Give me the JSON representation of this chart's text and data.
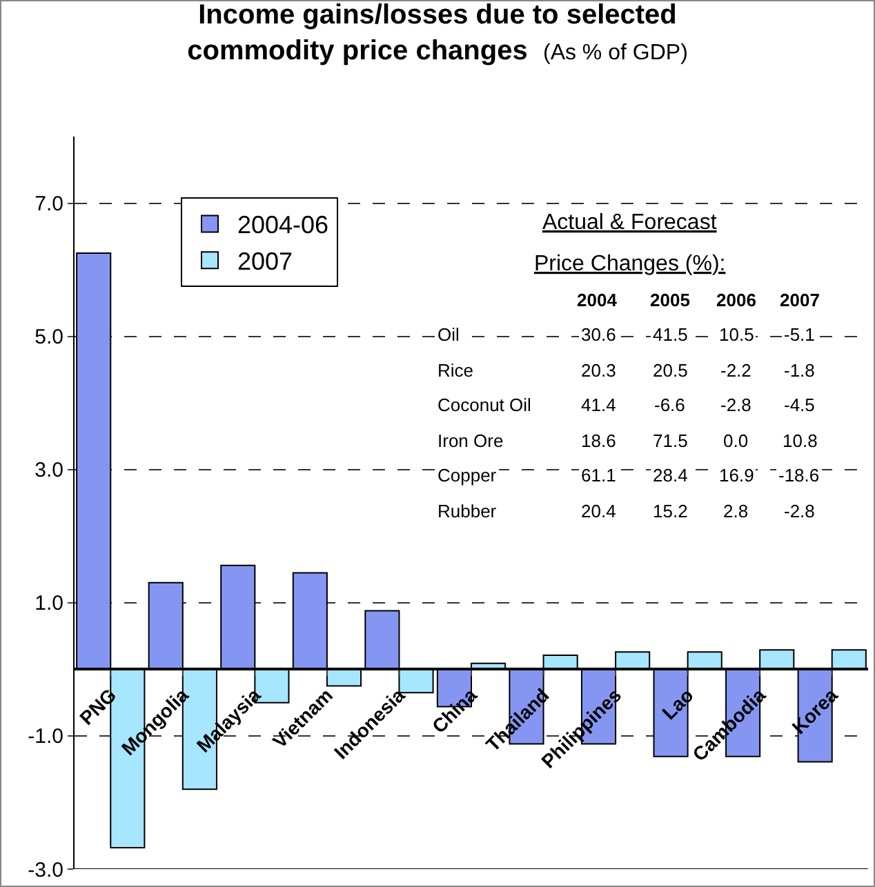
{
  "chart_data": {
    "type": "bar",
    "title": "Income gains/losses due to selected commodity price changes",
    "subtitle": "(As % of GDP)",
    "categories": [
      "PNG",
      "Mongolia",
      "Malaysia",
      "Vietnam",
      "Indonesia",
      "China",
      "Thailand",
      "Philippines",
      "Lao",
      "Cambodia",
      "Korea"
    ],
    "series": [
      {
        "name": "2004-06",
        "color": "#8596f2",
        "values": [
          6.25,
          1.3,
          1.56,
          1.45,
          0.88,
          -0.56,
          -1.12,
          -1.12,
          -1.31,
          -1.31,
          -1.39
        ]
      },
      {
        "name": "2007",
        "color": "#a6e6ff",
        "values": [
          -2.68,
          -1.8,
          -0.5,
          -0.25,
          -0.35,
          0.09,
          0.21,
          0.26,
          0.26,
          0.29,
          0.29
        ]
      }
    ],
    "ylim": [
      -3,
      8
    ],
    "yticks": [
      {
        "value": -3,
        "label": "-3.0"
      },
      {
        "value": -1,
        "label": "-1.0"
      },
      {
        "value": 1,
        "label": "1.0"
      },
      {
        "value": 3,
        "label": "3.0"
      },
      {
        "value": 5,
        "label": "5.0"
      },
      {
        "value": 7,
        "label": "7.0"
      }
    ],
    "grid": "y",
    "legend": "top left",
    "annotations": [
      "Actual & Forecast",
      "Price Changes (%):",
      "2004",
      "2005",
      "2006",
      "2007",
      "Oil",
      "30.6",
      "41.5",
      "10.5",
      "-5.1",
      "Rice",
      "20.3",
      "20.5",
      "-2.2",
      "-1.8",
      "Coconut Oil",
      "41.4",
      "-6.6",
      "-2.8",
      "-4.5",
      "Iron Ore",
      "18.6",
      "71.5",
      "0.0",
      "10.8",
      "Copper",
      "61.1",
      "28.4",
      "16.9",
      "-18.6",
      "Rubber",
      "20.4",
      "15.2",
      "2.8",
      "-2.8"
    ]
  }
}
